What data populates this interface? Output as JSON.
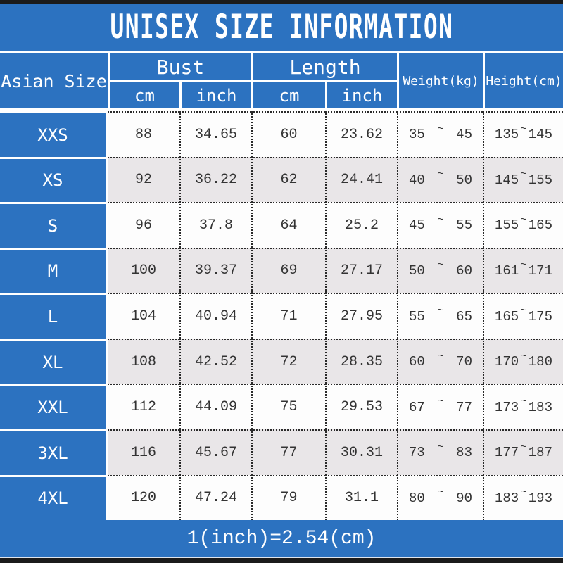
{
  "title": "UNISEX SIZE INFORMATION",
  "footer_note": "1(inch)=2.54(cm)",
  "tilde_symbol": "~",
  "colors": {
    "accent_blue": "#2c72c0",
    "row_alt_gray": "#e9e6e8",
    "row_white": "#fdfdfd",
    "text_dark": "#333333",
    "frame_black": "#1b1b1b"
  },
  "table": {
    "size_column_header": "Asian Size",
    "groups": [
      {
        "label": "Bust",
        "subs": [
          "cm",
          "inch"
        ]
      },
      {
        "label": "Length",
        "subs": [
          "cm",
          "inch"
        ]
      }
    ],
    "spanning_headers": [
      "Weight(kg)",
      "Height(cm)"
    ],
    "rows": [
      {
        "size": "XXS",
        "bust_cm": "88",
        "bust_inch": "34.65",
        "length_cm": "60",
        "length_inch": "23.62",
        "weight_min": "35",
        "weight_max": "45",
        "height_min": "135",
        "height_max": "145"
      },
      {
        "size": "XS",
        "bust_cm": "92",
        "bust_inch": "36.22",
        "length_cm": "62",
        "length_inch": "24.41",
        "weight_min": "40",
        "weight_max": "50",
        "height_min": "145",
        "height_max": "155"
      },
      {
        "size": "S",
        "bust_cm": "96",
        "bust_inch": "37.8",
        "length_cm": "64",
        "length_inch": "25.2",
        "weight_min": "45",
        "weight_max": "55",
        "height_min": "155",
        "height_max": "165"
      },
      {
        "size": "M",
        "bust_cm": "100",
        "bust_inch": "39.37",
        "length_cm": "69",
        "length_inch": "27.17",
        "weight_min": "50",
        "weight_max": "60",
        "height_min": "161",
        "height_max": "171"
      },
      {
        "size": "L",
        "bust_cm": "104",
        "bust_inch": "40.94",
        "length_cm": "71",
        "length_inch": "27.95",
        "weight_min": "55",
        "weight_max": "65",
        "height_min": "165",
        "height_max": "175"
      },
      {
        "size": "XL",
        "bust_cm": "108",
        "bust_inch": "42.52",
        "length_cm": "72",
        "length_inch": "28.35",
        "weight_min": "60",
        "weight_max": "70",
        "height_min": "170",
        "height_max": "180"
      },
      {
        "size": "XXL",
        "bust_cm": "112",
        "bust_inch": "44.09",
        "length_cm": "75",
        "length_inch": "29.53",
        "weight_min": "67",
        "weight_max": "77",
        "height_min": "173",
        "height_max": "183"
      },
      {
        "size": "3XL",
        "bust_cm": "116",
        "bust_inch": "45.67",
        "length_cm": "77",
        "length_inch": "30.31",
        "weight_min": "73",
        "weight_max": "83",
        "height_min": "177",
        "height_max": "187"
      },
      {
        "size": "4XL",
        "bust_cm": "120",
        "bust_inch": "47.24",
        "length_cm": "79",
        "length_inch": "31.1",
        "weight_min": "80",
        "weight_max": "90",
        "height_min": "183",
        "height_max": "193"
      }
    ]
  }
}
